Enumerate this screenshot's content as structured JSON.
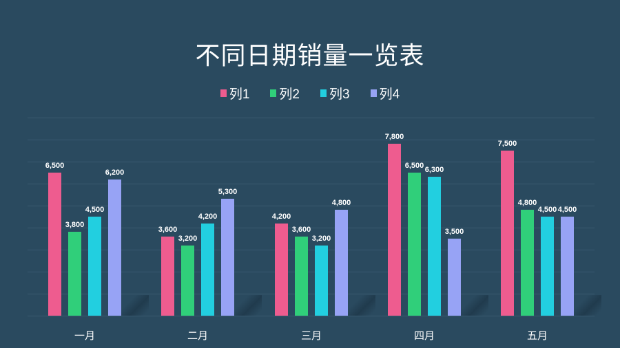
{
  "title": "不同日期销量一览表",
  "legend": [
    {
      "label": "列1",
      "color": "#ee5c8f"
    },
    {
      "label": "列2",
      "color": "#30cf7a"
    },
    {
      "label": "列3",
      "color": "#22cfe0"
    },
    {
      "label": "列4",
      "color": "#97a3f5"
    }
  ],
  "chart_data": {
    "type": "bar",
    "title": "不同日期销量一览表",
    "xlabel": "",
    "ylabel": "",
    "categories": [
      "一月",
      "二月",
      "三月",
      "四月",
      "五月"
    ],
    "series": [
      {
        "name": "列1",
        "color": "#ee5c8f",
        "values": [
          6500,
          3600,
          4200,
          7800,
          7500
        ]
      },
      {
        "name": "列2",
        "color": "#30cf7a",
        "values": [
          3800,
          3200,
          3600,
          6500,
          4800
        ]
      },
      {
        "name": "列3",
        "color": "#22cfe0",
        "values": [
          4500,
          4200,
          3200,
          6300,
          4500
        ]
      },
      {
        "name": "列4",
        "color": "#97a3f5",
        "values": [
          6200,
          5300,
          4800,
          3500,
          4500
        ]
      }
    ],
    "value_labels": [
      [
        "6,500",
        "3,600",
        "4,200",
        "7,800",
        "7,500"
      ],
      [
        "3,800",
        "3,200",
        "3,600",
        "6,500",
        "4,800"
      ],
      [
        "4,500",
        "4,200",
        "3,200",
        "6,300",
        "4,500"
      ],
      [
        "6,200",
        "5,300",
        "4,800",
        "3,500",
        "4,500"
      ]
    ],
    "ylim": [
      0,
      9000
    ],
    "grid": true,
    "grid_step": 1000,
    "legend_position": "top"
  }
}
